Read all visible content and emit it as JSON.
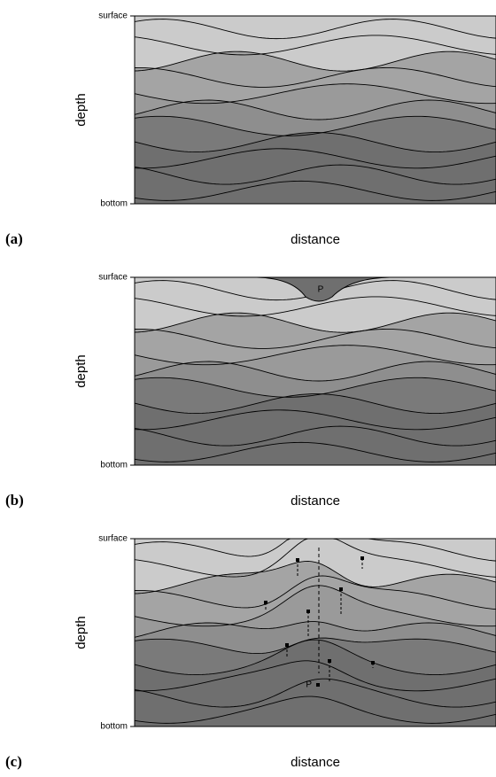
{
  "panels": [
    {
      "label": "(a)",
      "y_top": "surface",
      "y_bottom": "bottom",
      "y_label": "depth",
      "x_label": "distance"
    },
    {
      "label": "(b)",
      "y_top": "surface",
      "y_bottom": "bottom",
      "y_label": "depth",
      "x_label": "distance",
      "marker": "P"
    },
    {
      "label": "(c)",
      "y_top": "surface",
      "y_bottom": "bottom",
      "y_label": "depth",
      "x_label": "distance",
      "marker": "P"
    }
  ]
}
